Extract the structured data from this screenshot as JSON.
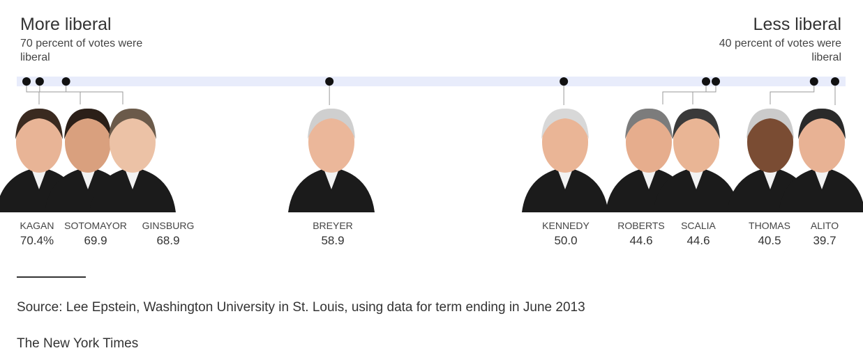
{
  "header": {
    "left_title": "More liberal",
    "left_subtitle": "70 percent of votes were liberal",
    "right_title": "Less liberal",
    "right_subtitle": "40 percent of votes were liberal"
  },
  "chart_data": {
    "type": "scatter",
    "axis": {
      "direction": "reversed",
      "range": [
        70.4,
        39.7
      ]
    },
    "grid": false,
    "points": [
      {
        "name": "KAGAN",
        "value": 70.4,
        "label": "70.4%"
      },
      {
        "name": "SOTOMAYOR",
        "value": 69.9,
        "label": "69.9"
      },
      {
        "name": "GINSBURG",
        "value": 68.9,
        "label": "68.9"
      },
      {
        "name": "BREYER",
        "value": 58.9,
        "label": "58.9"
      },
      {
        "name": "KENNEDY",
        "value": 50.0,
        "label": "50.0"
      },
      {
        "name": "ROBERTS",
        "value": 44.6,
        "label": "44.6"
      },
      {
        "name": "SCALIA",
        "value": 44.6,
        "label": "44.6"
      },
      {
        "name": "THOMAS",
        "value": 40.5,
        "label": "40.5"
      },
      {
        "name": "ALITO",
        "value": 39.7,
        "label": "39.7"
      }
    ],
    "colors": {
      "band": "#e8ecfb",
      "dot": "#111111",
      "leader": "#999999",
      "robe": "#1b1b1b",
      "skin": "#e3ab8c"
    }
  },
  "footer": {
    "source": "Source: Lee Epstein, Washington University in St. Louis, using data for term ending in June 2013",
    "credit": "The New York Times"
  }
}
